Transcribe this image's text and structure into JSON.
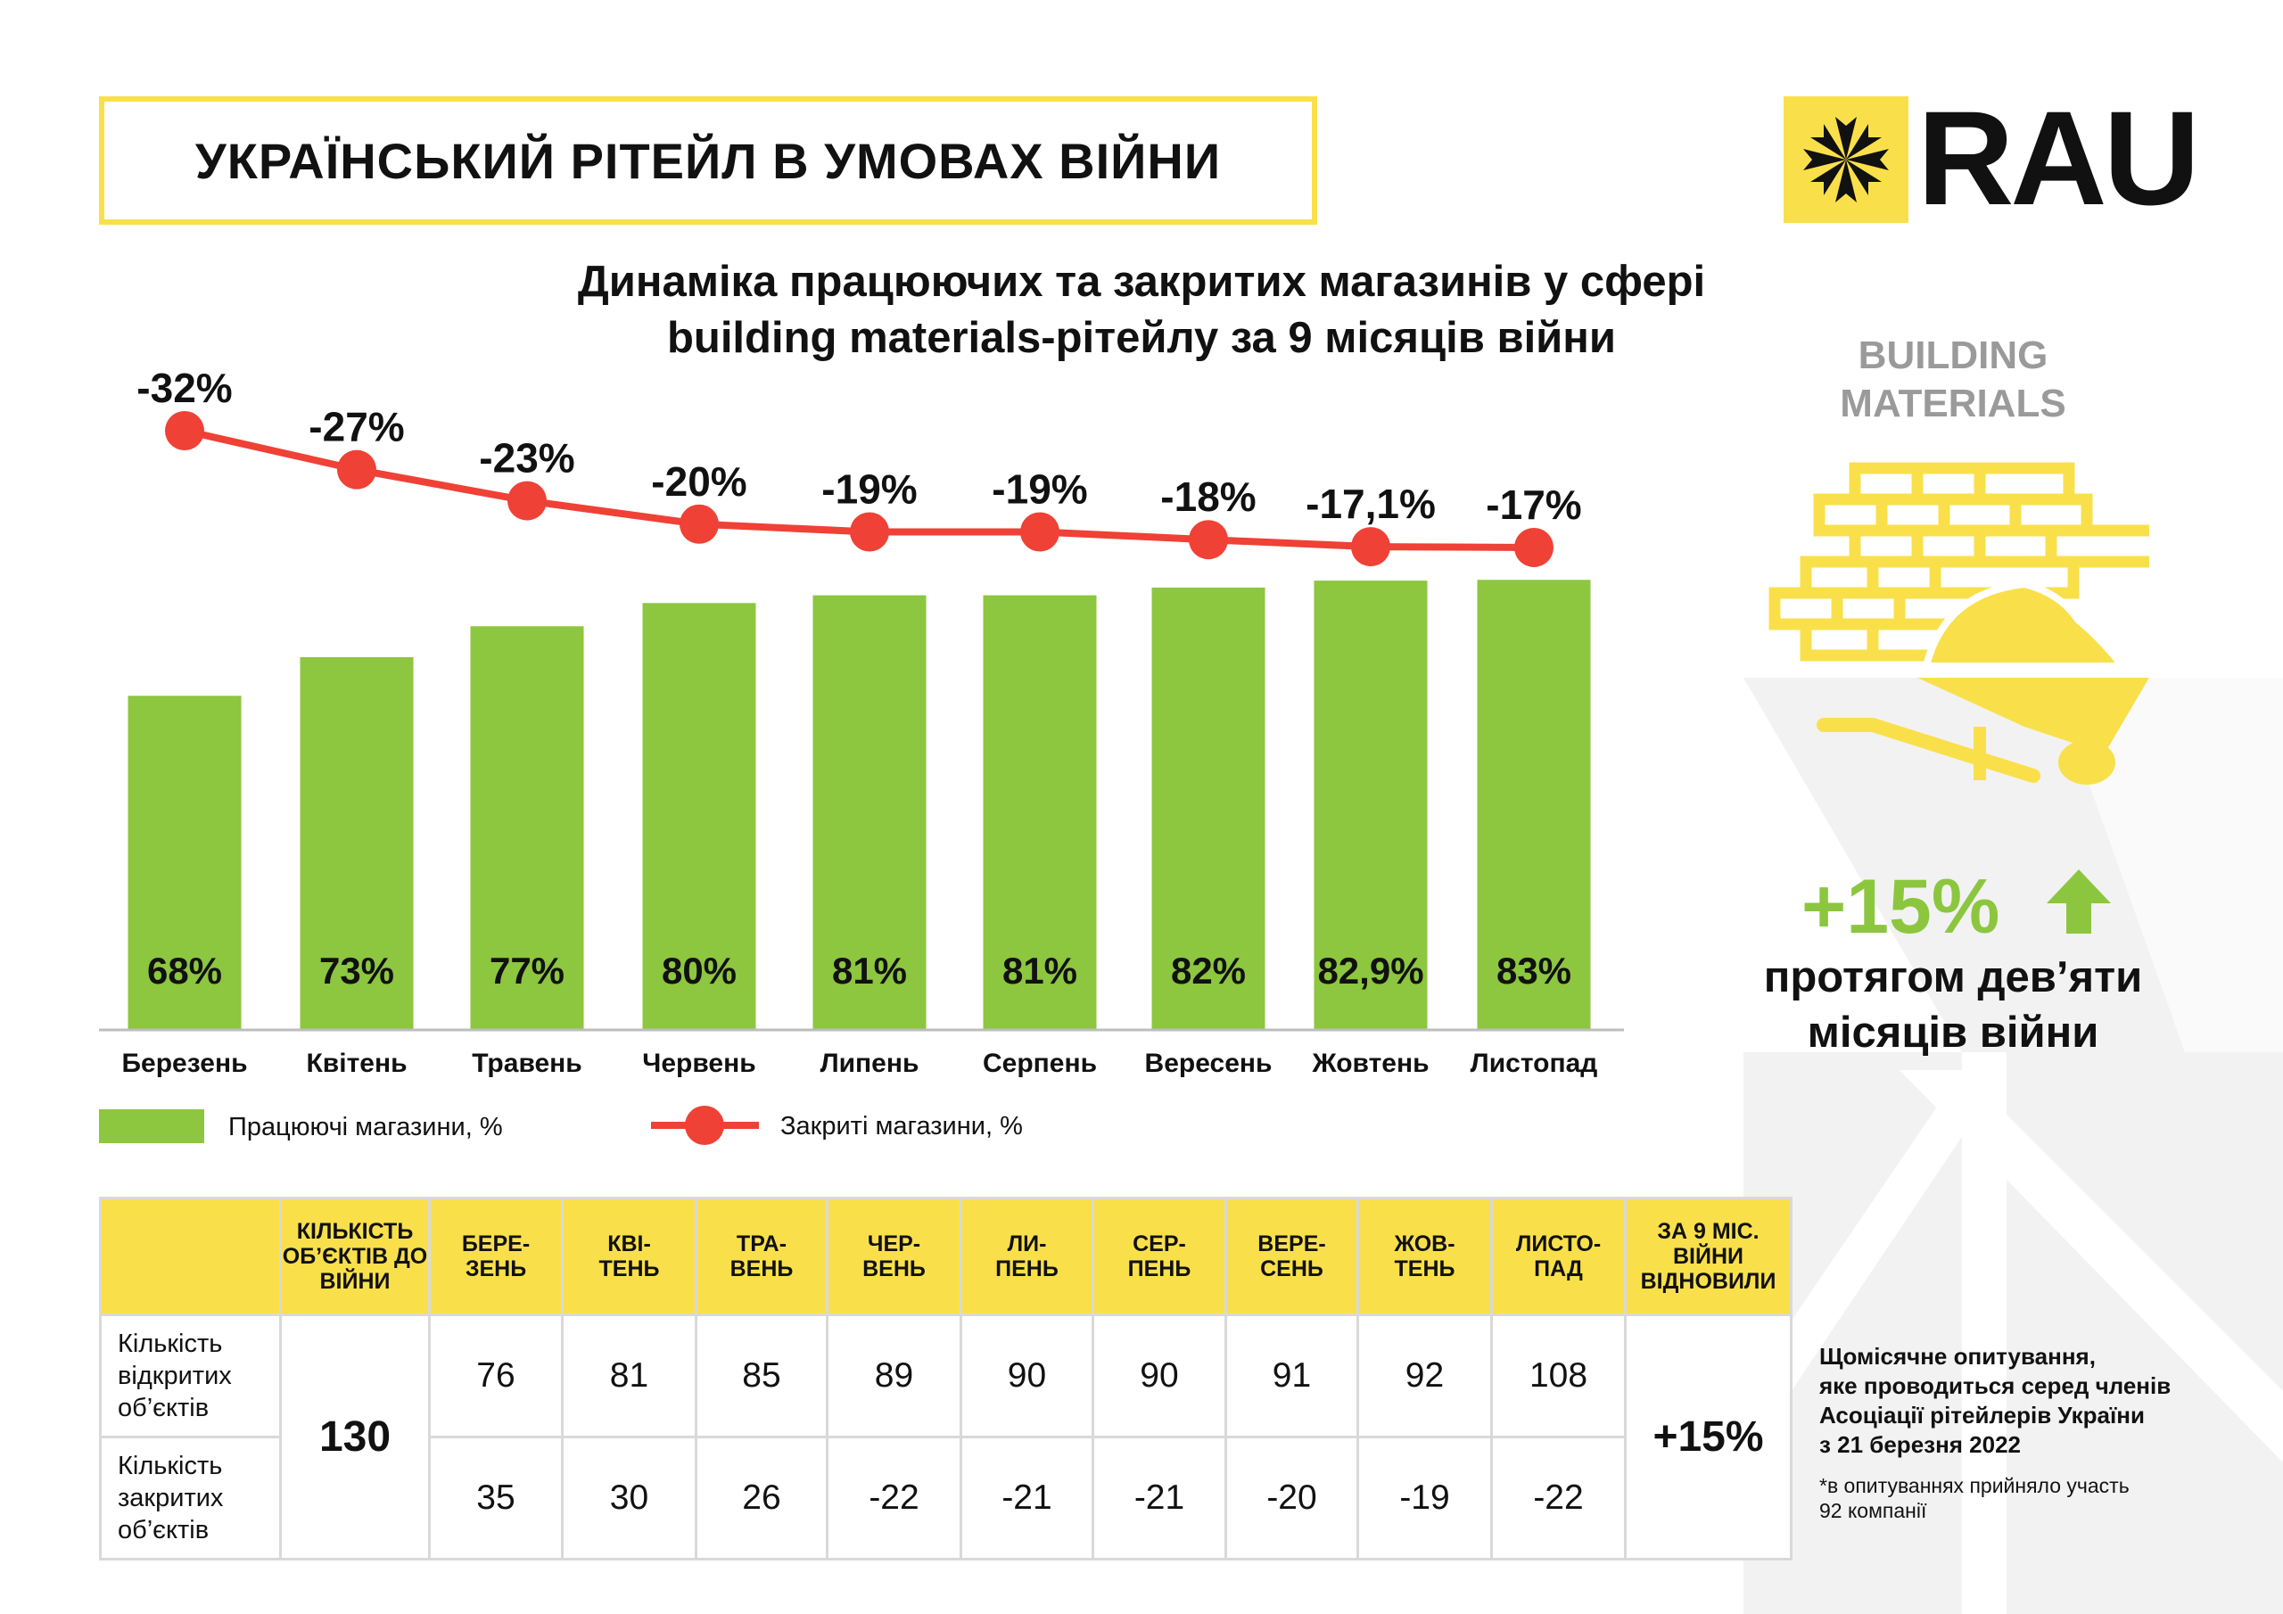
{
  "header": {
    "title": "УКРАЇНСЬКИЙ РІТЕЙЛ В УМОВАХ ВІЙНИ",
    "logo_text": "RAU"
  },
  "side": {
    "category_line1": "BUILDING",
    "category_line2": "MATERIALS",
    "icon": "bricks-wheelbarrow-icon",
    "growth": "+15%",
    "growth_icon": "arrow-up-icon",
    "growth_line1": "протягом дев’яти",
    "growth_line2": "місяців війни",
    "note_lines": [
      "Щомісячне опитування,",
      "яке проводиться серед членів",
      "Асоціації рітейлерів України",
      "з 21 березня 2022"
    ],
    "footnote_lines": [
      "*в опитуваннях прийняло участь",
      "92 компанії"
    ]
  },
  "colors": {
    "yellow": "#f9e04b",
    "bar": "#8dc63f",
    "line": "#ef4136",
    "growth": "#8cc63f"
  },
  "chart_data": {
    "type": "bar+line",
    "title_line1": "Динаміка працюючих та закритих магазинів у сфері",
    "title_line2": "building materials-рітейлу за 9 місяців війни",
    "categories": [
      "Березень",
      "Квітень",
      "Травень",
      "Червень",
      "Липень",
      "Серпень",
      "Вересень",
      "Жовтень",
      "Листопад"
    ],
    "series": [
      {
        "name": "Працюючі магазини, %",
        "type": "bar",
        "values": [
          68,
          73,
          77,
          80,
          81,
          81,
          82,
          82.9,
          83
        ],
        "labels": [
          "68%",
          "73%",
          "77%",
          "80%",
          "81%",
          "81%",
          "82%",
          "82,9%",
          "83%"
        ]
      },
      {
        "name": "Закриті магазини, %",
        "type": "line",
        "values": [
          -32,
          -27,
          -23,
          -20,
          -19,
          -19,
          -18,
          -17.1,
          -17
        ],
        "labels": [
          "-32%",
          "-27%",
          "-23%",
          "-20%",
          "-19%",
          "-19%",
          "-18%",
          "-17,1%",
          "-17%"
        ]
      }
    ],
    "legend": "bottom-left",
    "grid": false
  },
  "table": {
    "headers": [
      "",
      "КІЛЬКІСТЬ ОБ’ЄКТІВ ДО ВІЙНИ",
      "БЕРЕ-\nЗЕНЬ",
      "КВІ-\nТЕНЬ",
      "ТРА-\nВЕНЬ",
      "ЧЕР-\nВЕНЬ",
      "ЛИ-\nПЕНЬ",
      "СЕР-\nПЕНЬ",
      "ВЕРЕ-\nСЕНЬ",
      "ЖОВ-\nТЕНЬ",
      "ЛИСТО-\nПАД",
      "ЗА 9 МІС. ВІЙНИ ВІДНОВИЛИ"
    ],
    "row_open_label": "Кількість відкритих об’єктів",
    "row_closed_label": "Кількість закритих об’єктів",
    "prewar": "130",
    "open": [
      "76",
      "81",
      "85",
      "89",
      "90",
      "90",
      "91",
      "92",
      "108"
    ],
    "closed": [
      "35",
      "30",
      "26",
      "-22",
      "-21",
      "-21",
      "-20",
      "-19",
      "-22"
    ],
    "recovered": "+15%"
  }
}
